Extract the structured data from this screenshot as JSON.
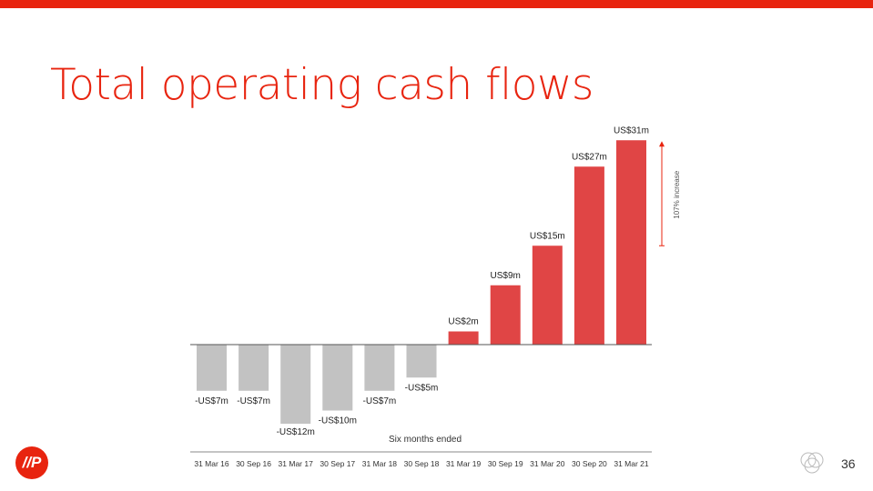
{
  "title": "Total operating cash flows",
  "chart_data": {
    "type": "bar",
    "categories": [
      "31 Mar 16",
      "30 Sep 16",
      "31 Mar 17",
      "30 Sep 17",
      "31 Mar 18",
      "30 Sep 18",
      "31 Mar 19",
      "30 Sep 19",
      "31 Mar 20",
      "30 Sep 20",
      "31 Mar 21"
    ],
    "values": [
      -7,
      -7,
      -12,
      -10,
      -7,
      -5,
      2,
      9,
      15,
      27,
      31
    ],
    "value_labels": [
      "-US$7m",
      "-US$7m",
      "-US$12m",
      "-US$10m",
      "-US$7m",
      "-US$5m",
      "US$2m",
      "US$9m",
      "US$15m",
      "US$27m",
      "US$31m"
    ],
    "ylim": [
      -12,
      31
    ],
    "xlabel": "Six months ended",
    "annotation": "107% increase",
    "colors": {
      "negative": "#c2c2c2",
      "positive": "#e04545",
      "accent": "#e8240f"
    },
    "grid": false,
    "legend": "none"
  },
  "footer": {
    "logo_text": "//P",
    "page_number": "36"
  }
}
